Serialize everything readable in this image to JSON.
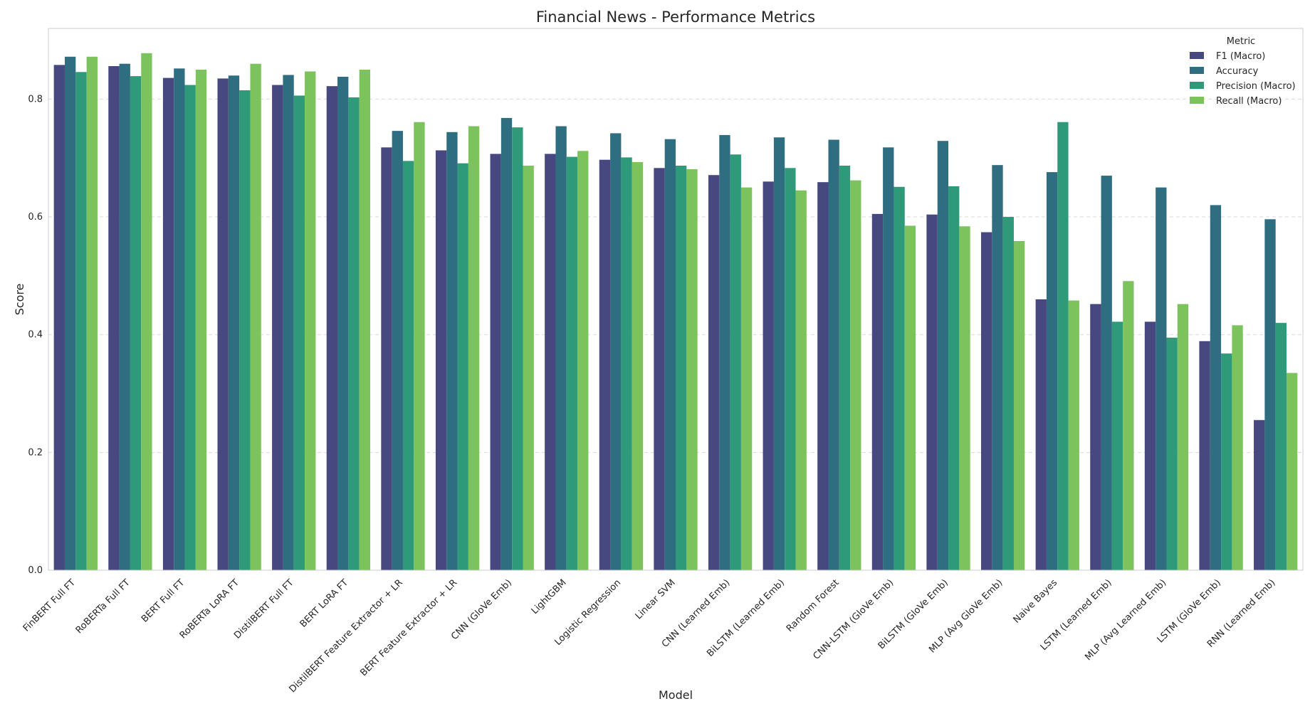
{
  "chart_data": {
    "type": "bar",
    "title": "Financial News - Performance Metrics",
    "xlabel": "Model",
    "ylabel": "Score",
    "ylim": [
      0,
      0.92
    ],
    "yticks": [
      "0.0",
      "0.2",
      "0.4",
      "0.6",
      "0.8"
    ],
    "grid": "horizontal-dashed",
    "legend": {
      "title": "Metric",
      "placement": "top-right"
    },
    "categories": [
      "FinBERT Full FT",
      "RoBERTa Full FT",
      "BERT Full FT",
      "RoBERTa LoRA FT",
      "DistilBERT Full FT",
      "BERT LoRA FT",
      "DistilBERT Feature Extractor + LR",
      "BERT Feature Extractor + LR",
      "CNN (GloVe Emb)",
      "LightGBM",
      "Logistic Regression",
      "Linear SVM",
      "CNN (Learned Emb)",
      "BiLSTM (Learned Emb)",
      "Random Forest",
      "CNN-LSTM (GloVe Emb)",
      "BiLSTM (GloVe Emb)",
      "MLP (Avg GloVe Emb)",
      "Naive Bayes",
      "LSTM (Learned Emb)",
      "MLP (Avg Learned Emb)",
      "LSTM (GloVe Emb)",
      "RNN (Learned Emb)"
    ],
    "series": [
      {
        "name": "F1 (Macro)",
        "color": "#46487f",
        "values": [
          0.858,
          0.856,
          0.836,
          0.835,
          0.824,
          0.822,
          0.718,
          0.713,
          0.707,
          0.707,
          0.697,
          0.683,
          0.671,
          0.66,
          0.659,
          0.605,
          0.604,
          0.574,
          0.46,
          0.452,
          0.422,
          0.389,
          0.255
        ]
      },
      {
        "name": "Accuracy",
        "color": "#2f6d80",
        "values": [
          0.872,
          0.86,
          0.852,
          0.84,
          0.841,
          0.838,
          0.746,
          0.744,
          0.768,
          0.754,
          0.742,
          0.732,
          0.739,
          0.735,
          0.731,
          0.718,
          0.729,
          0.688,
          0.676,
          0.67,
          0.65,
          0.62,
          0.596
        ]
      },
      {
        "name": "Precision (Macro)",
        "color": "#2f9a79",
        "values": [
          0.846,
          0.839,
          0.824,
          0.815,
          0.806,
          0.803,
          0.695,
          0.691,
          0.752,
          0.702,
          0.701,
          0.687,
          0.706,
          0.683,
          0.687,
          0.651,
          0.652,
          0.6,
          0.761,
          0.422,
          0.395,
          0.368,
          0.42
        ]
      },
      {
        "name": "Recall (Macro)",
        "color": "#7cc35e",
        "values": [
          0.872,
          0.878,
          0.85,
          0.86,
          0.847,
          0.85,
          0.761,
          0.754,
          0.687,
          0.712,
          0.693,
          0.681,
          0.65,
          0.645,
          0.662,
          0.585,
          0.584,
          0.559,
          0.458,
          0.491,
          0.452,
          0.416,
          0.335
        ]
      }
    ]
  }
}
